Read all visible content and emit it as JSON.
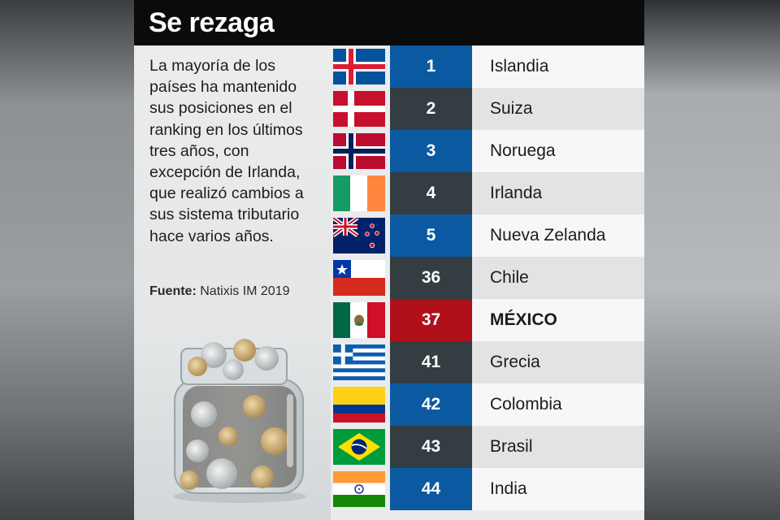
{
  "title": "Se rezaga",
  "intro": "La mayoría de los países ha mantenido sus posiciones en el ranking en los últimos tres años, con excepción de Irlanda, que realizó cambios a sus sistema tributario hace varios años.",
  "source": {
    "label": "Fuente:",
    "value": "Natixis IM 2019"
  },
  "colors": {
    "blue": "#0b5aa1",
    "dark": "#333d42",
    "red": "#b0101a",
    "light_row": "#f7f7f7",
    "gray_row": "#e1e3e4"
  },
  "rows": [
    {
      "rank": "1",
      "country": "Islandia",
      "flag": "iceland-flag-icon",
      "highlight": false
    },
    {
      "rank": "2",
      "country": "Suiza",
      "flag": "denmark-style-flag-icon",
      "highlight": false
    },
    {
      "rank": "3",
      "country": "Noruega",
      "flag": "norway-flag-icon",
      "highlight": false
    },
    {
      "rank": "4",
      "country": "Irlanda",
      "flag": "ireland-flag-icon",
      "highlight": false
    },
    {
      "rank": "5",
      "country": "Nueva Zelanda",
      "flag": "new-zealand-flag-icon",
      "highlight": false
    },
    {
      "rank": "36",
      "country": "Chile",
      "flag": "chile-flag-icon",
      "highlight": false
    },
    {
      "rank": "37",
      "country": "MÉXICO",
      "flag": "mexico-flag-icon",
      "highlight": true
    },
    {
      "rank": "41",
      "country": "Grecia",
      "flag": "greece-flag-icon",
      "highlight": false
    },
    {
      "rank": "42",
      "country": "Colombia",
      "flag": "colombia-flag-icon",
      "highlight": false
    },
    {
      "rank": "43",
      "country": "Brasil",
      "flag": "brazil-flag-icon",
      "highlight": false
    },
    {
      "rank": "44",
      "country": "India",
      "flag": "india-flag-icon",
      "highlight": false
    }
  ]
}
